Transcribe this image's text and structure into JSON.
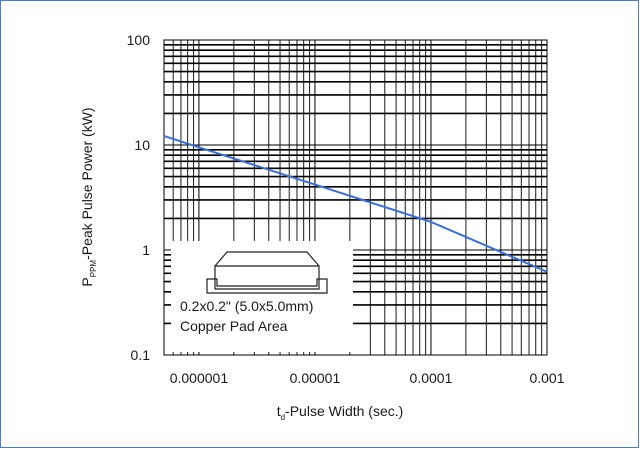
{
  "chart_data": {
    "type": "line",
    "x_scale": "log",
    "y_scale": "log",
    "xlim": [
      5e-07,
      0.001
    ],
    "ylim": [
      0.1,
      100
    ],
    "x_tick_labels": [
      "0.000001",
      "0.00001",
      "0.0001",
      "0.001"
    ],
    "x_tick_values": [
      1e-06,
      1e-05,
      0.0001,
      0.001
    ],
    "y_tick_labels": [
      "0.1",
      "1",
      "10",
      "100"
    ],
    "y_tick_values": [
      0.1,
      1,
      10,
      100
    ],
    "xlabel": {
      "prefix": "t",
      "subscript": "d",
      "suffix": "-Pulse Width (sec.)"
    },
    "ylabel": {
      "prefix": "P",
      "subscript": "PPM",
      "suffix": "-Peak Pulse Power (kW)"
    },
    "grid": true,
    "series": [
      {
        "color": "#3a6fd8",
        "x": [
          5e-07,
          1e-06,
          1e-05,
          0.0001,
          0.001
        ],
        "y": [
          12.2,
          9.5,
          4.2,
          1.85,
          0.62
        ]
      }
    ],
    "annotation": {
      "line1": "0.2x0.2\" (5.0x5.0mm)",
      "line2": "Copper Pad Area",
      "icon": "smd-package-icon"
    }
  }
}
